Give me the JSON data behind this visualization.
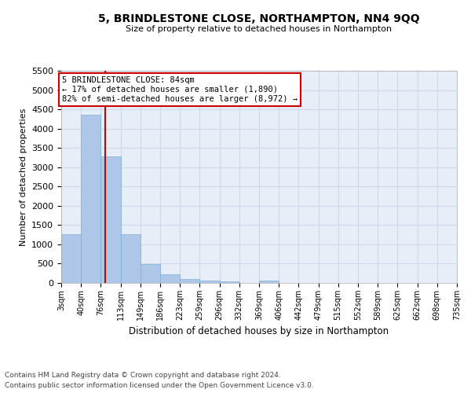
{
  "title": "5, BRINDLESTONE CLOSE, NORTHAMPTON, NN4 9QQ",
  "subtitle": "Size of property relative to detached houses in Northampton",
  "xlabel": "Distribution of detached houses by size in Northampton",
  "ylabel": "Number of detached properties",
  "bar_color": "#aec6e8",
  "bar_edge_color": "#7ab0d4",
  "grid_color": "#d0d8e8",
  "background_color": "#e8eef8",
  "annotation_line_color": "#cc0000",
  "annotation_box_color": "#cc0000",
  "footer_line1": "Contains HM Land Registry data © Crown copyright and database right 2024.",
  "footer_line2": "Contains public sector information licensed under the Open Government Licence v3.0.",
  "annotation_title": "5 BRINDLESTONE CLOSE: 84sqm",
  "annotation_line2": "← 17% of detached houses are smaller (1,890)",
  "annotation_line3": "82% of semi-detached houses are larger (8,972) →",
  "property_size": 84,
  "ylim": [
    0,
    5500
  ],
  "yticks": [
    0,
    500,
    1000,
    1500,
    2000,
    2500,
    3000,
    3500,
    4000,
    4500,
    5000,
    5500
  ],
  "bin_edges": [
    3,
    40,
    76,
    113,
    149,
    186,
    223,
    259,
    296,
    332,
    369,
    406,
    442,
    479,
    515,
    552,
    589,
    625,
    662,
    698,
    735
  ],
  "bin_heights": [
    1270,
    4350,
    3280,
    1270,
    490,
    225,
    100,
    65,
    50,
    0,
    60,
    0,
    0,
    0,
    0,
    0,
    0,
    0,
    0,
    0
  ],
  "tick_labels": [
    "3sqm",
    "40sqm",
    "76sqm",
    "113sqm",
    "149sqm",
    "186sqm",
    "223sqm",
    "259sqm",
    "296sqm",
    "332sqm",
    "369sqm",
    "406sqm",
    "442sqm",
    "479sqm",
    "515sqm",
    "552sqm",
    "589sqm",
    "625sqm",
    "662sqm",
    "698sqm",
    "735sqm"
  ]
}
